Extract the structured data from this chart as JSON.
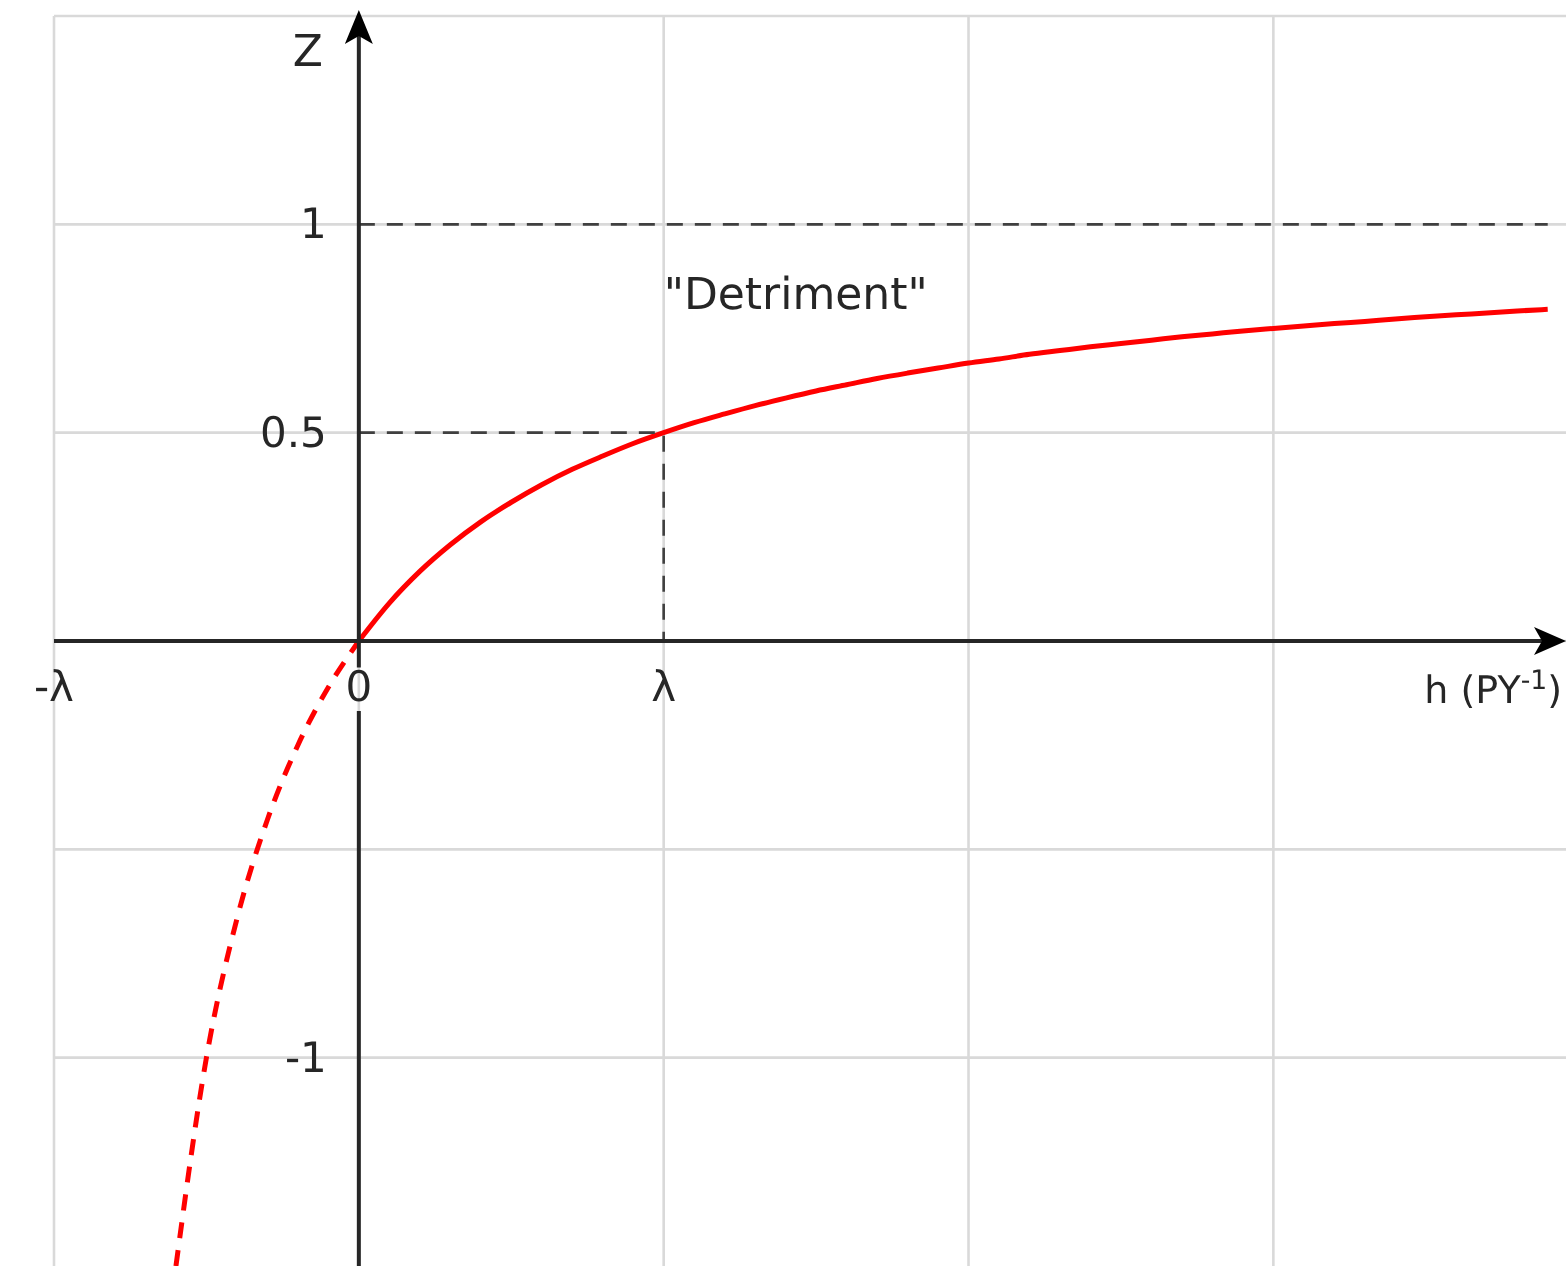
{
  "chart_data": {
    "type": "line",
    "xlabel": "h (PY$^{-1}$)",
    "ylabel": "Z",
    "categories": [
      "-λ",
      null,
      null,
      null,
      null,
      null,
      null,
      null,
      null,
      null,
      "0",
      null,
      null,
      null,
      null,
      null,
      null,
      null,
      null,
      null,
      "λ",
      null,
      null,
      null,
      null,
      null,
      null,
      null,
      null,
      null,
      null,
      null,
      null,
      null,
      null,
      null,
      null,
      null,
      null,
      null,
      null,
      null,
      null,
      null,
      null,
      null,
      null,
      null,
      null,
      null
    ],
    "ylim": [
      -1.5,
      1.5
    ],
    "yticks": [
      -1,
      {
        "value": -0.5,
        "label": null
      },
      {
        "value": 0,
        "label": null
      },
      0.5,
      1,
      {
        "value": 1.5,
        "label": null
      }
    ],
    "grid": true,
    "marker": "none",
    "series": [
      {
        "name": "\"Detriment\"",
        "color": "#ff0000",
        "line_style": "solid",
        "values": [
          null,
          null,
          null,
          null,
          null,
          null,
          null,
          null,
          null,
          null,
          0,
          0.091,
          0.167,
          0.231,
          0.286,
          0.333,
          0.375,
          0.412,
          0.444,
          0.474,
          0.5,
          0.524,
          0.545,
          0.565,
          0.583,
          0.6,
          0.615,
          0.63,
          0.643,
          0.655,
          0.667,
          0.677,
          0.688,
          0.697,
          0.706,
          0.714,
          0.722,
          0.73,
          0.737,
          0.744,
          0.75,
          0.756,
          0.762,
          0.767,
          0.773,
          0.778,
          0.783,
          0.787,
          0.792,
          0.796
        ]
      },
      {
        "color": "#ff0000",
        "line_style": "dashed",
        "values": [
          null,
          null,
          null,
          null,
          -1.5,
          -1,
          -0.667,
          -0.429,
          -0.25,
          -0.111,
          0,
          null,
          null,
          null,
          null,
          null,
          null,
          null,
          null,
          null,
          null,
          null,
          null,
          null,
          null,
          null,
          null,
          null,
          null,
          null,
          null,
          null,
          null,
          null,
          null,
          null,
          null,
          null,
          null,
          null,
          null,
          null,
          null,
          null,
          null,
          null,
          null,
          null,
          null,
          null
        ]
      },
      {
        "color": "#404040",
        "line_style": "dashed",
        "x": [
          "0",
          "λ",
          "λ"
        ],
        "values": [
          0.5,
          0.5,
          0
        ]
      },
      {
        "color": "#404040",
        "line_style": "dashed",
        "values": [
          null,
          null,
          null,
          null,
          null,
          null,
          null,
          null,
          null,
          null,
          1,
          1,
          1,
          1,
          1,
          1,
          1,
          1,
          1,
          1,
          1,
          1,
          1,
          1,
          1,
          1,
          1,
          1,
          1,
          1,
          1,
          1,
          1,
          1,
          1,
          1,
          1,
          1,
          1,
          1,
          1,
          1,
          1,
          1,
          1,
          1,
          1,
          1,
          1,
          1
        ]
      }
    ]
  }
}
